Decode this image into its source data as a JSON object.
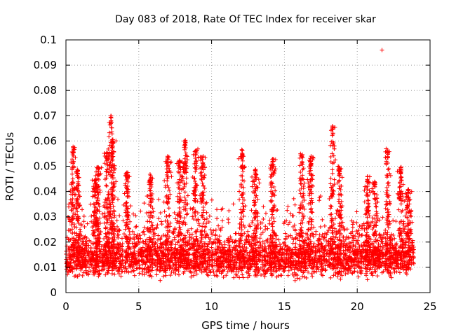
{
  "chart_data": {
    "type": "scatter",
    "title": "Day 083 of 2018, Rate Of TEC Index for receiver skar",
    "xlabel": "GPS time / hours",
    "ylabel": "ROTI / TECUs",
    "xlim": [
      0,
      25
    ],
    "ylim": [
      0,
      0.1
    ],
    "x_ticks": [
      0,
      5,
      10,
      15,
      20,
      25
    ],
    "x_tick_labels": [
      "0",
      "5",
      "10",
      "15",
      "20",
      "25"
    ],
    "y_ticks": [
      0,
      0.01,
      0.02,
      0.03,
      0.04,
      0.05,
      0.06,
      0.07,
      0.08,
      0.09,
      0.1
    ],
    "y_tick_labels": [
      "0",
      "0.01",
      "0.02",
      "0.03",
      "0.04",
      "0.05",
      "0.06",
      "0.07",
      "0.08",
      "0.09",
      "0.1"
    ],
    "grid": true,
    "marker": "plus",
    "color": "#ff0000",
    "x_data_range": [
      0,
      23.9
    ],
    "band_median": 0.012,
    "bursts": [
      {
        "x": 0.5,
        "peak": 0.058
      },
      {
        "x": 0.8,
        "peak": 0.049
      },
      {
        "x": 2.0,
        "peak": 0.045
      },
      {
        "x": 2.2,
        "peak": 0.05
      },
      {
        "x": 2.8,
        "peak": 0.056
      },
      {
        "x": 3.1,
        "peak": 0.07
      },
      {
        "x": 3.2,
        "peak": 0.061
      },
      {
        "x": 4.2,
        "peak": 0.048
      },
      {
        "x": 5.8,
        "peak": 0.047
      },
      {
        "x": 7.0,
        "peak": 0.054
      },
      {
        "x": 7.8,
        "peak": 0.053
      },
      {
        "x": 8.2,
        "peak": 0.061
      },
      {
        "x": 8.9,
        "peak": 0.057
      },
      {
        "x": 9.4,
        "peak": 0.054
      },
      {
        "x": 12.1,
        "peak": 0.057
      },
      {
        "x": 13.0,
        "peak": 0.049
      },
      {
        "x": 14.2,
        "peak": 0.053
      },
      {
        "x": 16.2,
        "peak": 0.055
      },
      {
        "x": 16.8,
        "peak": 0.054
      },
      {
        "x": 18.3,
        "peak": 0.066
      },
      {
        "x": 18.8,
        "peak": 0.05
      },
      {
        "x": 20.7,
        "peak": 0.046
      },
      {
        "x": 21.2,
        "peak": 0.044
      },
      {
        "x": 22.1,
        "peak": 0.057
      },
      {
        "x": 23.0,
        "peak": 0.05
      },
      {
        "x": 23.5,
        "peak": 0.041
      }
    ],
    "outliers": [
      {
        "x": 21.7,
        "y": 0.096
      },
      {
        "x": 0.2,
        "y": 0.035
      },
      {
        "x": 10.9,
        "y": 0.02
      }
    ]
  }
}
